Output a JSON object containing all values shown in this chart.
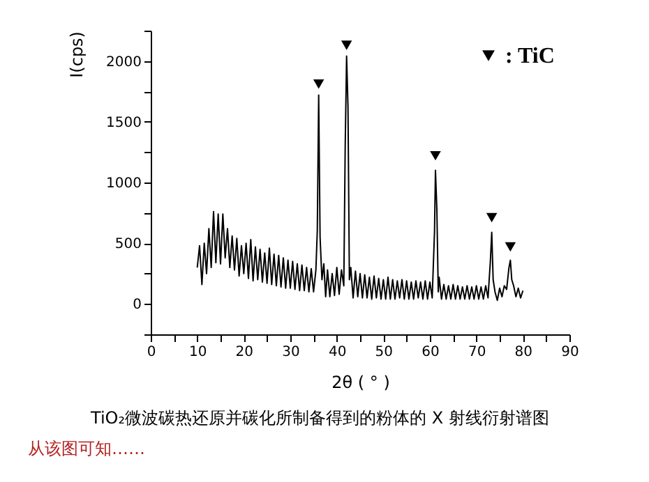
{
  "chart_data": {
    "type": "line",
    "xlabel": "2θ ( ° )",
    "ylabel": "I(cps)",
    "xlim": [
      0,
      90
    ],
    "ylim": [
      -250,
      2250
    ],
    "xticks": [
      0,
      {
        "value": 5,
        "label": null
      },
      10,
      {
        "value": 15,
        "label": null
      },
      20,
      {
        "value": 25,
        "label": null
      },
      30,
      {
        "value": 35,
        "label": null
      },
      40,
      {
        "value": 45,
        "label": null
      },
      50,
      {
        "value": 55,
        "label": null
      },
      60,
      {
        "value": 65,
        "label": null
      },
      70,
      {
        "value": 75,
        "label": null
      },
      80,
      {
        "value": 85,
        "label": null
      },
      90
    ],
    "yticks": [
      {
        "value": -250,
        "label": null
      },
      0,
      {
        "value": 250,
        "label": null
      },
      500,
      {
        "value": 750,
        "label": null
      },
      1000,
      {
        "value": 1250,
        "label": null
      },
      1500,
      {
        "value": 1750,
        "label": null
      },
      2000,
      {
        "value": 2250,
        "label": null
      }
    ],
    "grid": false,
    "legend": "top right",
    "series": [
      {
        "color": "#000000",
        "line_style": "solid",
        "x": [
          10,
          10.5,
          11,
          11.5,
          12,
          12.5,
          13,
          13.5,
          14,
          14.5,
          15,
          15.5,
          16,
          16.5,
          17,
          17.5,
          18,
          18.5,
          19,
          19.5,
          20,
          20.5,
          21,
          21.5,
          22,
          22.5,
          23,
          23.5,
          24,
          24.5,
          25,
          25.5,
          26,
          26.5,
          27,
          27.5,
          28,
          28.5,
          29,
          29.5,
          30,
          30.5,
          31,
          31.5,
          32,
          32.5,
          33,
          33.5,
          34,
          34.5,
          35,
          35.5,
          35.8,
          36.1,
          36.4,
          36.8,
          37.2,
          37.6,
          38,
          38.5,
          39,
          39.5,
          40,
          40.5,
          41,
          41.5,
          41.8,
          42.1,
          42.4,
          42.7,
          43,
          43.5,
          44,
          44.5,
          45,
          45.5,
          46,
          46.5,
          47,
          47.5,
          48,
          48.5,
          49,
          49.5,
          50,
          50.5,
          51,
          51.5,
          52,
          52.5,
          53,
          53.5,
          54,
          54.5,
          55,
          55.5,
          56,
          56.5,
          57,
          57.5,
          58,
          58.5,
          59,
          59.5,
          60,
          60.5,
          61,
          61.2,
          61.5,
          61.8,
          62,
          62.5,
          63,
          63.5,
          64,
          64.5,
          65,
          65.5,
          66,
          66.5,
          67,
          67.5,
          68,
          68.5,
          69,
          69.5,
          70,
          70.5,
          71,
          71.5,
          72,
          72.5,
          73,
          73.3,
          73.6,
          74,
          74.5,
          75,
          75.5,
          76,
          76.5,
          77,
          77.3,
          77.6,
          78,
          78.5,
          79,
          79.5,
          80
        ],
        "values": [
          300,
          480,
          160,
          500,
          250,
          620,
          300,
          760,
          340,
          740,
          330,
          740,
          380,
          620,
          300,
          560,
          280,
          540,
          230,
          480,
          250,
          500,
          210,
          530,
          190,
          470,
          200,
          450,
          180,
          420,
          170,
          460,
          160,
          410,
          150,
          400,
          140,
          380,
          130,
          360,
          130,
          350,
          120,
          330,
          110,
          320,
          110,
          300,
          100,
          290,
          100,
          280,
          600,
          1720,
          550,
          200,
          330,
          60,
          280,
          60,
          250,
          70,
          300,
          80,
          280,
          150,
          1300,
          2040,
          1620,
          200,
          300,
          50,
          270,
          60,
          250,
          50,
          240,
          50,
          220,
          40,
          230,
          50,
          210,
          40,
          200,
          40,
          220,
          40,
          200,
          40,
          190,
          50,
          200,
          40,
          190,
          40,
          180,
          40,
          190,
          50,
          180,
          40,
          190,
          40,
          180,
          50,
          600,
          1100,
          780,
          100,
          220,
          40,
          160,
          40,
          150,
          40,
          160,
          40,
          150,
          40,
          140,
          40,
          150,
          40,
          140,
          40,
          150,
          40,
          140,
          40,
          150,
          50,
          350,
          590,
          200,
          100,
          30,
          130,
          60,
          150,
          120,
          300,
          360,
          200,
          150,
          60,
          130,
          50,
          110
        ]
      },
      {
        "type": "scatter",
        "name": ": TiC",
        "color": "#000000",
        "marker": "triangle",
        "x": [
          36.1,
          42.1,
          61.2,
          73.3,
          77.3
        ],
        "values": [
          1810,
          2130,
          1220,
          710,
          470
        ]
      }
    ],
    "annotations": [
      "TiO₂微波碳热还原并碳化所制备得到的粉体的 X 射线衍射谱图",
      "从该图可知……"
    ]
  }
}
